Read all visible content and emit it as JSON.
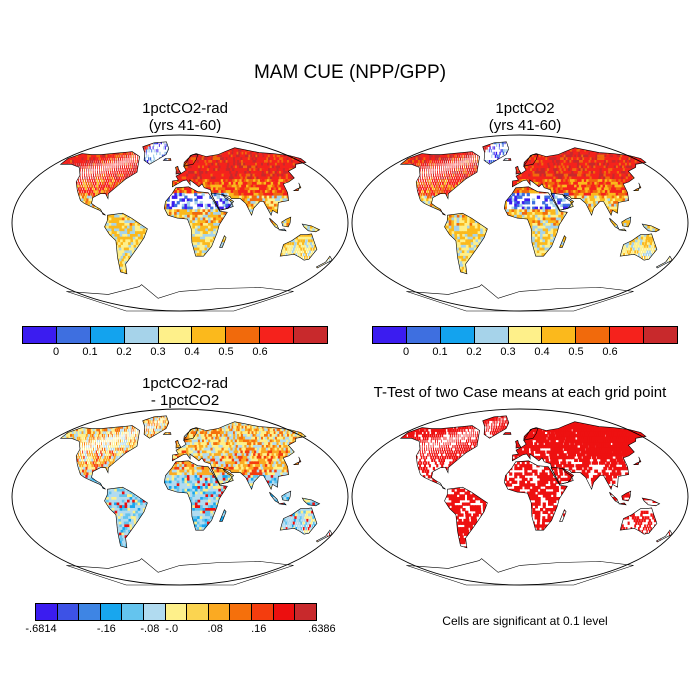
{
  "figure": {
    "title": "MAM CUE (NPP/GPP)"
  },
  "panels": [
    {
      "id": "tl",
      "title_line1": "1pctCO2-rad",
      "title_line2": "(yrs 41-60)",
      "scheme": "warm"
    },
    {
      "id": "tr",
      "title_line1": "1pctCO2",
      "title_line2": "(yrs 41-60)",
      "scheme": "warm2"
    },
    {
      "id": "bl",
      "title_line1": "1pctCO2-rad",
      "title_line2": "- 1pctCO2",
      "scheme": "diff"
    },
    {
      "id": "br",
      "title_line1": "T-Test of two Case means at each grid point",
      "title_line2": "",
      "scheme": "sig"
    }
  ],
  "colorbar_main": {
    "colors": [
      "#3b1cf0",
      "#3e6fe0",
      "#13a3ee",
      "#a6d3ea",
      "#fef08a",
      "#fbb91c",
      "#f16a0c",
      "#f5221c",
      "#c8292c"
    ],
    "labels": [
      "0",
      "0.1",
      "0.2",
      "0.3",
      "0.4",
      "0.5",
      "0.6"
    ]
  },
  "colorbar_diff": {
    "colors": [
      "#3b1cf0",
      "#3d52e6",
      "#3e85e4",
      "#18a6ee",
      "#64c4ee",
      "#b1dbf0",
      "#fef08a",
      "#fbd450",
      "#fbaa22",
      "#f5700c",
      "#f43d0e",
      "#ec0f0f",
      "#c8292c"
    ],
    "labels": [
      "-.6814",
      "-.16",
      "-.08",
      "-.0",
      ".08",
      ".16",
      ".6386"
    ]
  },
  "note": "Cells are significant at 0.1 level",
  "colors": {
    "ocean": "#ffffff",
    "coast": "#000000",
    "sig": "#ee1111"
  }
}
